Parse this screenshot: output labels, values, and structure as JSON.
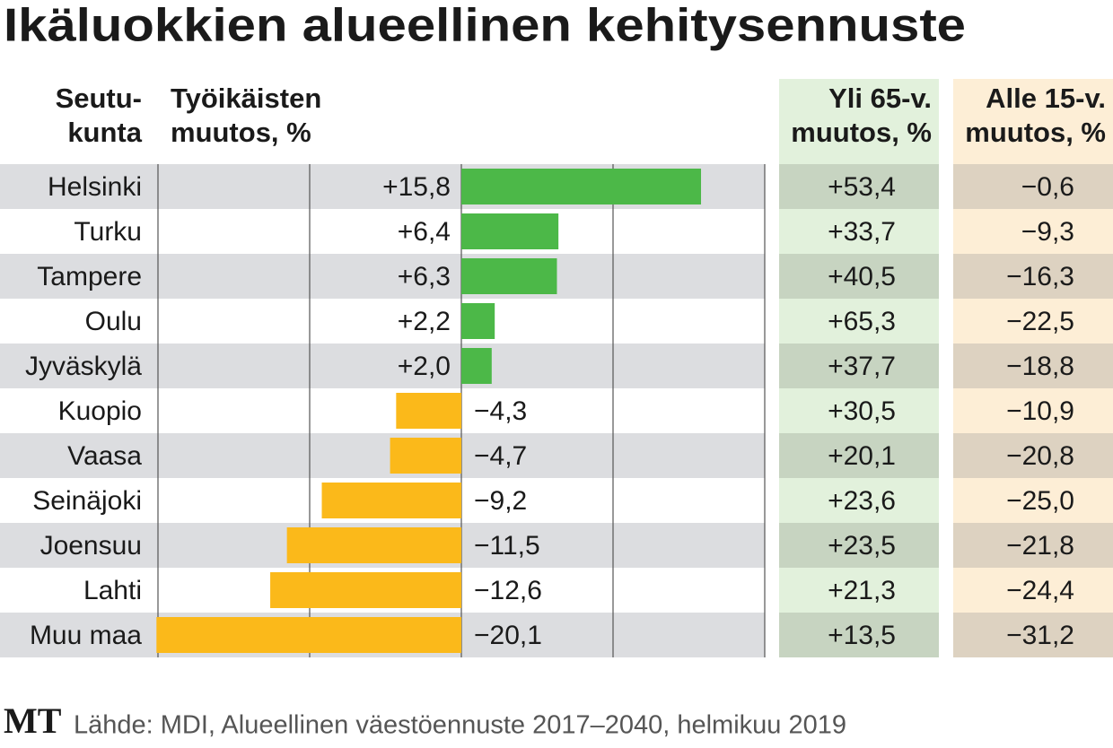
{
  "chart_data": {
    "type": "bar",
    "title": "Ikäluokkien alueellinen kehitysennuste",
    "region_header": [
      "Seutu-",
      "kunta"
    ],
    "bar_header": [
      "Työikäisten",
      "muutos, %"
    ],
    "categories": [
      "Helsinki",
      "Turku",
      "Tampere",
      "Oulu",
      "Jyväskylä",
      "Kuopio",
      "Vaasa",
      "Seinäjoki",
      "Joensuu",
      "Lahti",
      "Muu maa"
    ],
    "values": [
      15.8,
      6.4,
      6.3,
      2.2,
      2.0,
      -4.3,
      -4.7,
      -9.2,
      -11.5,
      -12.6,
      -20.1
    ],
    "value_labels": [
      "+15,8",
      "+6,4",
      "+6,3",
      "+2,2",
      "+2,0",
      "−4,3",
      "−4,7",
      "−9,2",
      "−11,5",
      "−12,6",
      "−20,1"
    ],
    "positive_color": "#4cb848",
    "negative_color": "#fbb91a",
    "xlim": [
      -20,
      20
    ],
    "xticks": [
      -20,
      -10,
      0,
      10,
      20
    ],
    "grid": true,
    "columns": [
      {
        "name": [
          "Yli 65-v.",
          "muutos, %"
        ],
        "color": "#e2f1dc",
        "shade": "#c7d4c1",
        "values": [
          53.4,
          33.7,
          40.5,
          65.3,
          37.7,
          30.5,
          20.1,
          23.6,
          23.5,
          21.3,
          13.5
        ],
        "value_labels": [
          "+53,4",
          "+33,7",
          "+40,5",
          "+65,3",
          "+37,7",
          "+30,5",
          "+20,1",
          "+23,6",
          "+23,5",
          "+21,3",
          "+13,5"
        ]
      },
      {
        "name": [
          "Alle 15-v.",
          "muutos, %"
        ],
        "color": "#fdeed6",
        "shade": "#ddd2c1",
        "values": [
          -0.6,
          -9.3,
          -16.3,
          -22.5,
          -18.8,
          -10.9,
          -20.8,
          -25.0,
          -21.8,
          -24.4,
          -31.2
        ],
        "value_labels": [
          "−0,6",
          "−9,3",
          "−16,3",
          "−22,5",
          "−18,8",
          "−10,9",
          "−20,8",
          "−25,0",
          "−21,8",
          "−24,4",
          "−31,2"
        ]
      }
    ],
    "logo": "MT",
    "source": "Lähde: MDI, Alueellinen väestöennuste 2017–2040, helmikuu 2019"
  }
}
